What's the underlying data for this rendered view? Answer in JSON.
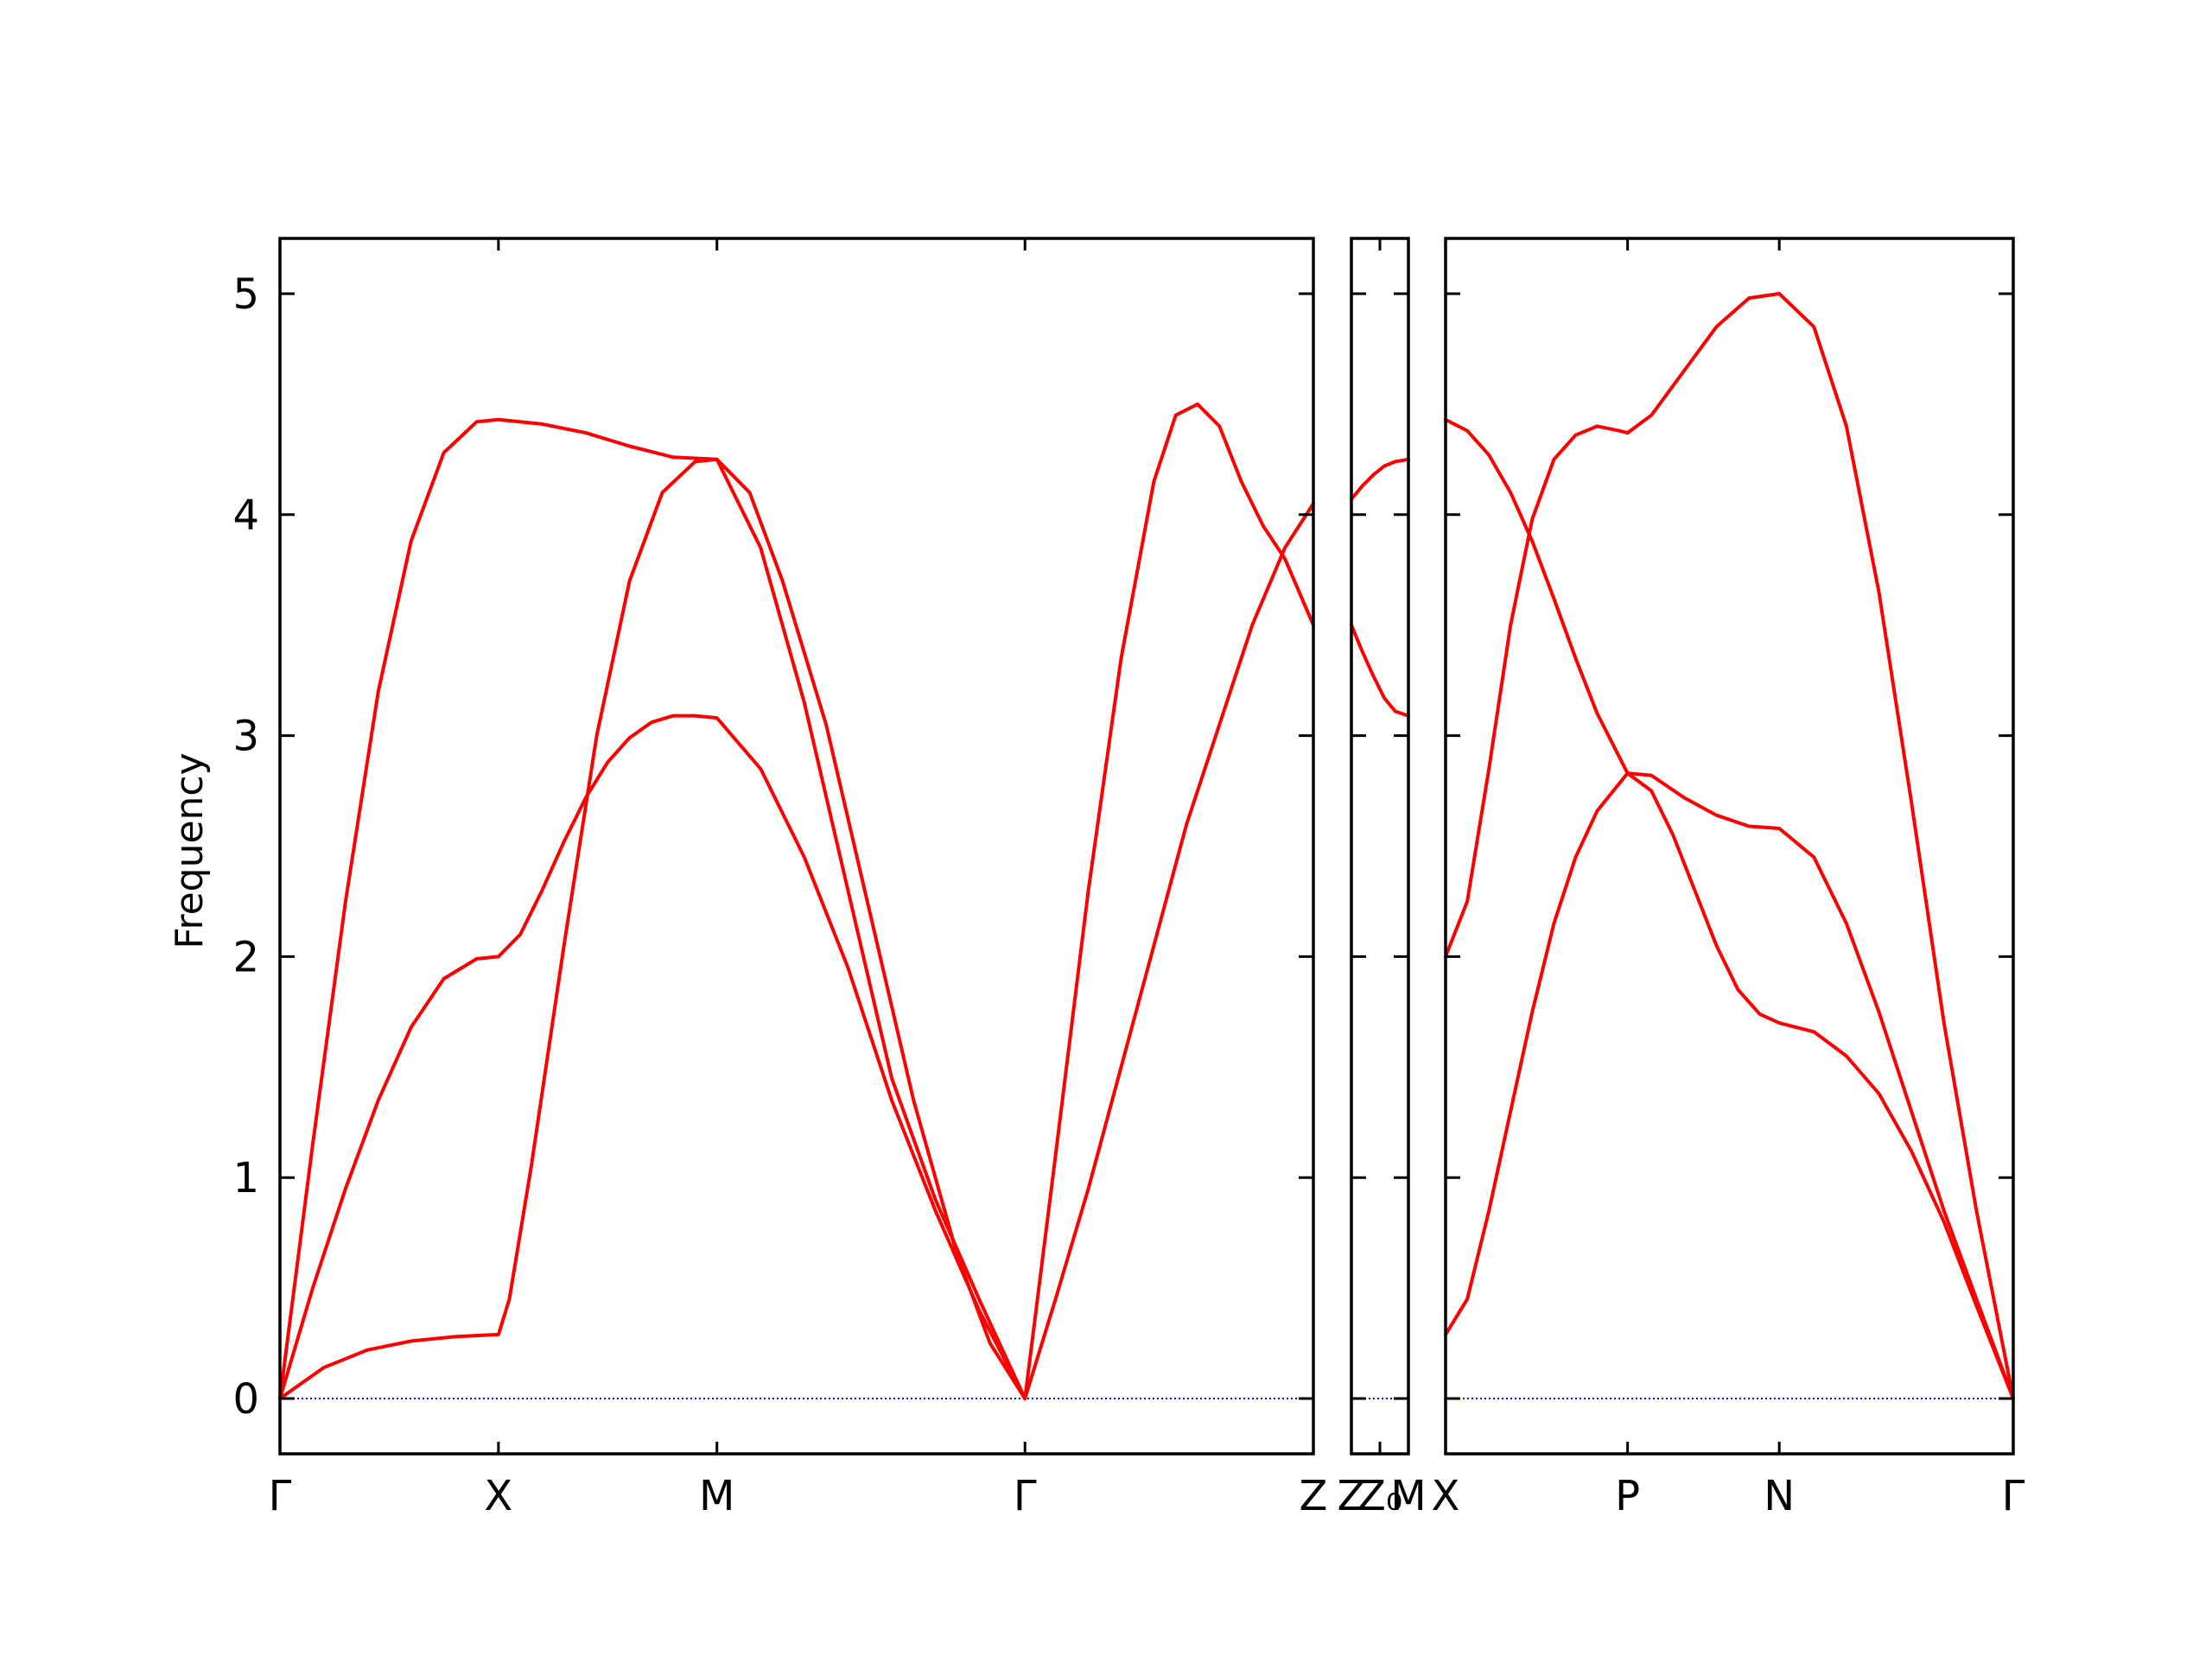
{
  "chart_data": {
    "type": "line",
    "ylabel": "Frequency",
    "ylim": [
      -0.25,
      5.25
    ],
    "yticks": [
      0,
      1,
      2,
      3,
      4,
      5
    ],
    "grid": false,
    "legend": "none",
    "line_color": "#ff0000",
    "zero_line_color": "#0000ff",
    "panels": [
      {
        "xlim": [
          0,
          4.73
        ],
        "ticks": [
          {
            "x": 0.0,
            "label": "Γ"
          },
          {
            "x": 1.0,
            "label": "X"
          },
          {
            "x": 2.0,
            "label": "M"
          },
          {
            "x": 3.41,
            "label": "Γ"
          },
          {
            "x": 4.73,
            "label": "Z"
          }
        ],
        "series": [
          {
            "x": [
              0,
              0.15,
              0.3,
              0.45,
              0.6,
              0.75,
              0.9,
              1.0,
              1.2,
              1.4,
              1.6,
              1.8,
              2.0,
              2.2,
              2.4,
              2.6,
              2.8,
              3.0,
              3.2,
              3.41
            ],
            "y": [
              0,
              1.15,
              2.25,
              3.2,
              3.88,
              4.28,
              4.42,
              4.43,
              4.41,
              4.37,
              4.31,
              4.26,
              4.25,
              3.85,
              3.15,
              2.3,
              1.45,
              0.9,
              0.45,
              0
            ]
          },
          {
            "x": [
              0,
              0.15,
              0.3,
              0.45,
              0.6,
              0.75,
              0.9,
              1.0,
              1.1,
              1.2,
              1.3,
              1.4,
              1.5,
              1.6,
              1.7,
              1.8,
              1.9,
              2.0,
              2.2,
              2.4,
              2.6,
              2.8,
              3.0,
              3.2,
              3.41
            ],
            "y": [
              0,
              0.5,
              0.95,
              1.35,
              1.68,
              1.9,
              1.99,
              2.0,
              2.1,
              2.3,
              2.52,
              2.72,
              2.88,
              2.99,
              3.06,
              3.09,
              3.09,
              3.08,
              2.85,
              2.45,
              1.95,
              1.35,
              0.85,
              0.4,
              0
            ]
          },
          {
            "x": [
              0,
              0.2,
              0.4,
              0.6,
              0.8,
              1.0,
              1.05,
              1.15,
              1.3,
              1.45,
              1.6,
              1.75,
              1.9,
              2.0,
              2.15,
              2.3,
              2.5,
              2.7,
              2.9,
              3.1,
              3.25,
              3.41
            ],
            "y": [
              0,
              0.14,
              0.22,
              0.26,
              0.28,
              0.29,
              0.45,
              1.05,
              2.05,
              3.0,
              3.7,
              4.1,
              4.24,
              4.25,
              4.1,
              3.7,
              3.05,
              2.2,
              1.35,
              0.65,
              0.25,
              0
            ]
          },
          {
            "x": [
              3.41,
              3.55,
              3.7,
              3.85,
              4.0,
              4.1,
              4.2,
              4.3,
              4.4,
              4.5,
              4.6,
              4.73
            ],
            "y": [
              0,
              1.1,
              2.3,
              3.35,
              4.15,
              4.45,
              4.5,
              4.4,
              4.15,
              3.95,
              3.8,
              3.5
            ]
          },
          {
            "x": [
              3.41,
              3.55,
              3.7,
              3.85,
              4.0,
              4.15,
              4.3,
              4.45,
              4.6,
              4.73
            ],
            "y": [
              0,
              0.45,
              0.95,
              1.5,
              2.05,
              2.6,
              3.05,
              3.5,
              3.85,
              4.05
            ]
          }
        ]
      },
      {
        "xlim": [
          0,
          0.26
        ],
        "ticks": [
          {
            "x": 0.0,
            "label": "Z"
          },
          {
            "x": 0.13,
            "label": "Z₀"
          },
          {
            "x": 0.26,
            "label": "M"
          }
        ],
        "series": [
          {
            "x": [
              0,
              0.05,
              0.1,
              0.15,
              0.2,
              0.26
            ],
            "y": [
              4.07,
              4.13,
              4.18,
              4.22,
              4.24,
              4.25
            ]
          },
          {
            "x": [
              0,
              0.05,
              0.1,
              0.15,
              0.2,
              0.26
            ],
            "y": [
              3.5,
              3.38,
              3.27,
              3.17,
              3.11,
              3.09
            ]
          }
        ]
      },
      {
        "xlim": [
          0,
          2.62
        ],
        "ticks": [
          {
            "x": 0.0,
            "label": "X"
          },
          {
            "x": 0.84,
            "label": "P"
          },
          {
            "x": 1.54,
            "label": "N"
          },
          {
            "x": 2.62,
            "label": "Γ"
          }
        ],
        "series": [
          {
            "x": [
              0,
              0.1,
              0.2,
              0.3,
              0.4,
              0.5,
              0.6,
              0.7,
              0.84
            ],
            "y": [
              4.43,
              4.38,
              4.27,
              4.1,
              3.88,
              3.62,
              3.35,
              3.1,
              2.83
            ]
          },
          {
            "x": [
              0,
              0.1,
              0.2,
              0.3,
              0.4,
              0.5,
              0.6,
              0.7,
              0.8,
              0.84,
              0.95,
              1.1,
              1.25,
              1.4,
              1.54,
              1.7,
              1.85,
              2.0,
              2.15,
              2.3,
              2.45,
              2.62
            ],
            "y": [
              2.0,
              2.25,
              2.85,
              3.5,
              3.98,
              4.25,
              4.36,
              4.4,
              4.38,
              4.37,
              4.45,
              4.65,
              4.85,
              4.98,
              5.0,
              4.85,
              4.4,
              3.65,
              2.7,
              1.7,
              0.85,
              0
            ]
          },
          {
            "x": [
              0,
              0.1,
              0.2,
              0.3,
              0.4,
              0.5,
              0.6,
              0.7,
              0.84,
              0.95,
              1.1,
              1.25,
              1.4,
              1.54,
              1.7,
              1.85,
              2.0,
              2.15,
              2.3,
              2.45,
              2.62
            ],
            "y": [
              0.29,
              0.45,
              0.85,
              1.3,
              1.75,
              2.15,
              2.45,
              2.66,
              2.83,
              2.82,
              2.72,
              2.64,
              2.59,
              2.58,
              2.45,
              2.15,
              1.75,
              1.3,
              0.85,
              0.45,
              0
            ]
          },
          {
            "x": [
              0.84,
              0.95,
              1.05,
              1.15,
              1.25,
              1.35,
              1.45,
              1.54,
              1.7,
              1.85,
              2.0,
              2.15,
              2.3,
              2.45,
              2.62
            ],
            "y": [
              2.83,
              2.75,
              2.55,
              2.3,
              2.05,
              1.85,
              1.74,
              1.7,
              1.66,
              1.55,
              1.38,
              1.12,
              0.8,
              0.42,
              0
            ]
          }
        ]
      }
    ]
  }
}
